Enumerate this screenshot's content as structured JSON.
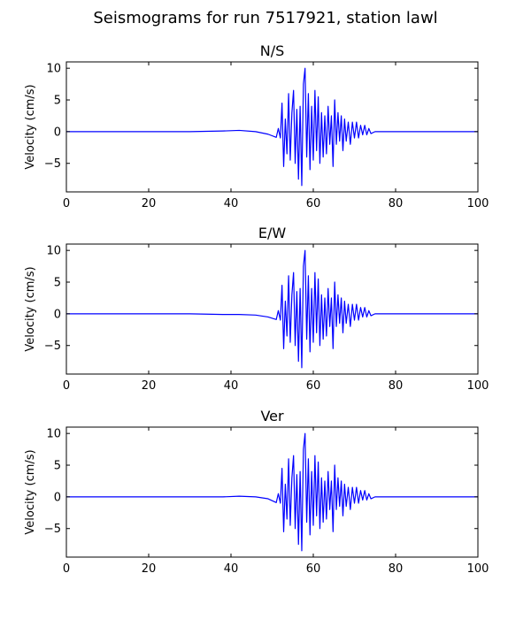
{
  "figure": {
    "title": "Seismograms for run 7517921, station lawl"
  },
  "chart_data": [
    {
      "type": "line",
      "title": "N/S",
      "xlabel": "",
      "ylabel": "Velocity (cm/s)",
      "xlim": [
        0,
        100
      ],
      "ylim": [
        -9.5,
        11
      ],
      "xticks": [
        0,
        20,
        40,
        60,
        80,
        100
      ],
      "yticks": [
        -5,
        0,
        5,
        10
      ],
      "grid": false,
      "color": "#0000ff",
      "series": [
        {
          "x": [
            0,
            10,
            20,
            30,
            38,
            42,
            46,
            49,
            51,
            51.5,
            52,
            52.4,
            52.8,
            53.2,
            53.6,
            54,
            54.4,
            54.8,
            55.2,
            55.6,
            56,
            56.4,
            56.8,
            57.2,
            57.6,
            58,
            58.4,
            58.8,
            59.2,
            59.6,
            60,
            60.4,
            60.8,
            61.2,
            61.6,
            62,
            62.4,
            62.8,
            63.2,
            63.6,
            64,
            64.4,
            64.8,
            65.2,
            65.6,
            66,
            66.4,
            66.8,
            67.2,
            67.6,
            68,
            68.5,
            69,
            69.5,
            70,
            70.5,
            71,
            71.5,
            72,
            72.5,
            73,
            73.5,
            74,
            75,
            80,
            90,
            100
          ],
          "y": [
            0,
            0,
            0,
            0,
            0.1,
            0.2,
            0,
            -0.4,
            -0.9,
            0.5,
            -1.0,
            4.5,
            -5.5,
            2.0,
            -3.5,
            6.0,
            -4.5,
            3.0,
            6.5,
            -5.0,
            3.5,
            -7.5,
            4.0,
            -8.5,
            7.5,
            10.0,
            -4.0,
            6.0,
            -6.0,
            4.0,
            -4.5,
            6.5,
            -3.0,
            5.5,
            -5.0,
            3.0,
            -4.0,
            2.5,
            -3.5,
            4.0,
            -2.0,
            2.5,
            -5.5,
            5.0,
            -2.0,
            3.0,
            -1.5,
            2.5,
            -3.0,
            2.0,
            -1.5,
            1.5,
            -2.0,
            1.5,
            -1.0,
            1.5,
            -1.0,
            1.0,
            -0.5,
            1.0,
            -0.5,
            0.5,
            -0.3,
            0,
            0,
            0,
            0
          ]
        }
      ]
    },
    {
      "type": "line",
      "title": "E/W",
      "xlabel": "",
      "ylabel": "Velocity (cm/s)",
      "xlim": [
        0,
        100
      ],
      "ylim": [
        -9.5,
        11
      ],
      "xticks": [
        0,
        20,
        40,
        60,
        80,
        100
      ],
      "yticks": [
        -5,
        0,
        5,
        10
      ],
      "grid": false,
      "color": "#0000ff",
      "series": [
        {
          "x": [
            0,
            10,
            20,
            30,
            38,
            42,
            46,
            49,
            51,
            51.5,
            52,
            52.4,
            52.8,
            53.2,
            53.6,
            54,
            54.4,
            54.8,
            55.2,
            55.6,
            56,
            56.4,
            56.8,
            57.2,
            57.6,
            58,
            58.4,
            58.8,
            59.2,
            59.6,
            60,
            60.4,
            60.8,
            61.2,
            61.6,
            62,
            62.4,
            62.8,
            63.2,
            63.6,
            64,
            64.4,
            64.8,
            65.2,
            65.6,
            66,
            66.4,
            66.8,
            67.2,
            67.6,
            68,
            68.5,
            69,
            69.5,
            70,
            70.5,
            71,
            71.5,
            72,
            72.5,
            73,
            73.5,
            74,
            75,
            80,
            90,
            100
          ],
          "y": [
            0,
            0,
            0,
            0,
            -0.1,
            -0.1,
            -0.2,
            -0.5,
            -0.9,
            0.5,
            -1.0,
            4.5,
            -5.5,
            2.0,
            -3.5,
            6.0,
            -4.5,
            3.0,
            6.5,
            -5.0,
            3.5,
            -7.5,
            4.0,
            -8.5,
            7.5,
            10.0,
            -4.0,
            6.0,
            -6.0,
            4.0,
            -4.5,
            6.5,
            -3.0,
            5.5,
            -5.0,
            3.0,
            -4.0,
            2.5,
            -3.5,
            4.0,
            -2.0,
            2.5,
            -5.5,
            5.0,
            -2.0,
            3.0,
            -1.5,
            2.5,
            -3.0,
            2.0,
            -1.5,
            1.5,
            -2.0,
            1.5,
            -1.0,
            1.5,
            -1.0,
            1.0,
            -0.5,
            1.0,
            -0.5,
            0.5,
            -0.3,
            0,
            0,
            0,
            0
          ]
        }
      ]
    },
    {
      "type": "line",
      "title": "Ver",
      "xlabel": "",
      "ylabel": "Velocity (cm/s)",
      "xlim": [
        0,
        100
      ],
      "ylim": [
        -9.5,
        11
      ],
      "xticks": [
        0,
        20,
        40,
        60,
        80,
        100
      ],
      "yticks": [
        -5,
        0,
        5,
        10
      ],
      "grid": false,
      "color": "#0000ff",
      "series": [
        {
          "x": [
            0,
            10,
            20,
            30,
            38,
            42,
            46,
            49,
            51,
            51.5,
            52,
            52.4,
            52.8,
            53.2,
            53.6,
            54,
            54.4,
            54.8,
            55.2,
            55.6,
            56,
            56.4,
            56.8,
            57.2,
            57.6,
            58,
            58.4,
            58.8,
            59.2,
            59.6,
            60,
            60.4,
            60.8,
            61.2,
            61.6,
            62,
            62.4,
            62.8,
            63.2,
            63.6,
            64,
            64.4,
            64.8,
            65.2,
            65.6,
            66,
            66.4,
            66.8,
            67.2,
            67.6,
            68,
            68.5,
            69,
            69.5,
            70,
            70.5,
            71,
            71.5,
            72,
            72.5,
            73,
            73.5,
            74,
            75,
            80,
            90,
            100
          ],
          "y": [
            0,
            0,
            0,
            0,
            0,
            0.1,
            0,
            -0.3,
            -0.9,
            0.5,
            -1.0,
            4.5,
            -5.5,
            2.0,
            -3.5,
            6.0,
            -4.5,
            3.0,
            6.5,
            -5.0,
            3.5,
            -7.5,
            4.0,
            -8.5,
            7.5,
            10.0,
            -4.0,
            6.0,
            -6.0,
            4.0,
            -4.5,
            6.5,
            -3.0,
            5.5,
            -5.0,
            3.0,
            -4.0,
            2.5,
            -3.5,
            4.0,
            -2.0,
            2.5,
            -5.5,
            5.0,
            -2.0,
            3.0,
            -1.5,
            2.5,
            -3.0,
            2.0,
            -1.5,
            1.5,
            -2.0,
            1.5,
            -1.0,
            1.5,
            -1.0,
            1.0,
            -0.5,
            1.0,
            -0.5,
            0.5,
            -0.3,
            0,
            0,
            0,
            0
          ]
        }
      ]
    }
  ]
}
